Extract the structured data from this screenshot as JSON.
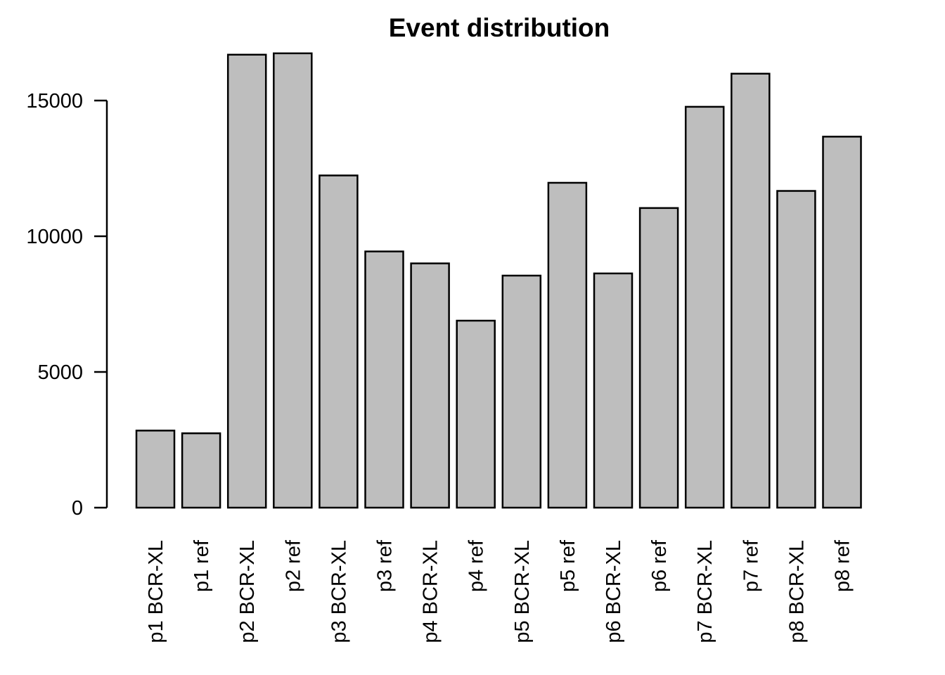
{
  "chart_data": {
    "type": "bar",
    "title": "Event distribution",
    "xlabel": "",
    "ylabel": "",
    "categories": [
      "p1 BCR-XL",
      "p1 ref",
      "p2 BCR-XL",
      "p2 ref",
      "p3 BCR-XL",
      "p3 ref",
      "p4 BCR-XL",
      "p4 ref",
      "p5 BCR-XL",
      "p5 ref",
      "p6 BCR-XL",
      "p6 ref",
      "p7 BCR-XL",
      "p7 ref",
      "p8 BCR-XL",
      "p8 ref"
    ],
    "values": [
      2840,
      2740,
      16690,
      16740,
      12240,
      9440,
      9000,
      6890,
      8550,
      11970,
      8630,
      11040,
      14770,
      15990,
      11670,
      13670
    ],
    "yticks": [
      0,
      5000,
      10000,
      15000
    ],
    "ylim": [
      0,
      17000
    ],
    "grid": false,
    "legend": "none",
    "colors": {
      "bar_fill": "#bebebe",
      "bar_stroke": "#000000",
      "axis": "#000000",
      "text": "#000000",
      "background": "#ffffff"
    }
  }
}
